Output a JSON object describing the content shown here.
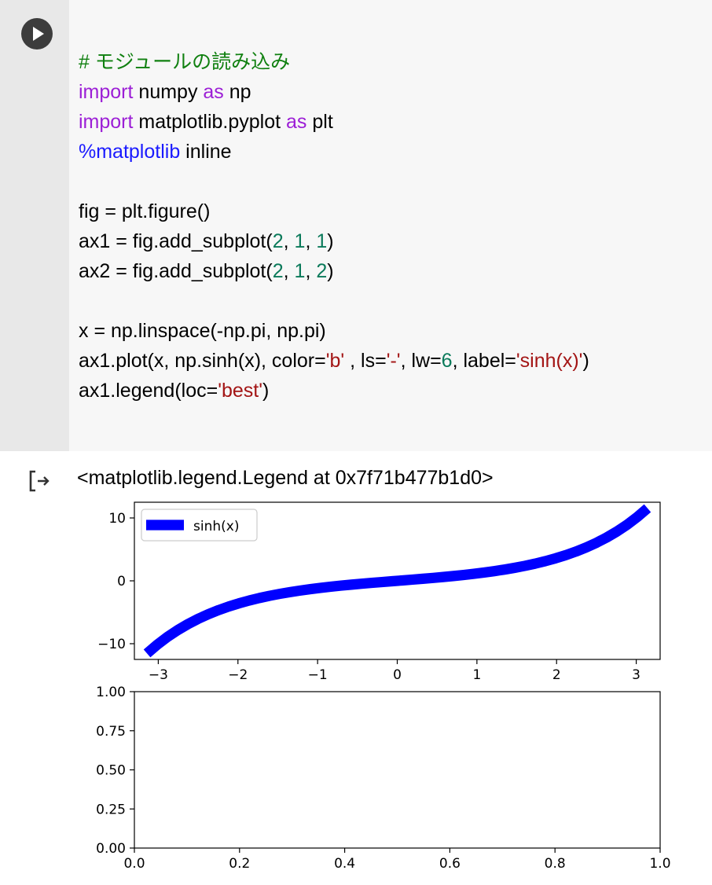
{
  "cell": {
    "run_icon": "play-icon",
    "code_lines": [
      [
        {
          "t": "# モジュールの読み込み",
          "c": "cm"
        }
      ],
      [
        {
          "t": "import",
          "c": "kw"
        },
        {
          "t": " numpy "
        },
        {
          "t": "as",
          "c": "kw"
        },
        {
          "t": " np"
        }
      ],
      [
        {
          "t": "import",
          "c": "kw"
        },
        {
          "t": " matplotlib.pyplot "
        },
        {
          "t": "as",
          "c": "kw"
        },
        {
          "t": " plt"
        }
      ],
      [
        {
          "t": "%matplotlib",
          "c": "mg"
        },
        {
          "t": " inline"
        }
      ],
      [],
      [
        {
          "t": "fig = plt.figure()"
        }
      ],
      [
        {
          "t": "ax1 = fig.add_subplot("
        },
        {
          "t": "2",
          "c": "nm"
        },
        {
          "t": ", "
        },
        {
          "t": "1",
          "c": "nm"
        },
        {
          "t": ", "
        },
        {
          "t": "1",
          "c": "nm"
        },
        {
          "t": ")"
        }
      ],
      [
        {
          "t": "ax2 = fig.add_subplot("
        },
        {
          "t": "2",
          "c": "nm"
        },
        {
          "t": ", "
        },
        {
          "t": "1",
          "c": "nm"
        },
        {
          "t": ", "
        },
        {
          "t": "2",
          "c": "nm"
        },
        {
          "t": ")"
        }
      ],
      [],
      [
        {
          "t": "x = np.linspace(-np.pi, np.pi)"
        }
      ],
      [
        {
          "t": "ax1.plot(x, np.sinh(x), color="
        },
        {
          "t": "'b'",
          "c": "st"
        },
        {
          "t": " , ls="
        },
        {
          "t": "'-'",
          "c": "st"
        },
        {
          "t": ", lw="
        },
        {
          "t": "6",
          "c": "nm"
        },
        {
          "t": ", label="
        },
        {
          "t": "'sinh(x)'",
          "c": "st"
        },
        {
          "t": ")"
        }
      ],
      [
        {
          "t": "ax1.legend(loc="
        },
        {
          "t": "'best'",
          "c": "st"
        },
        {
          "t": ")"
        }
      ]
    ]
  },
  "output": {
    "icon": "output-arrow-icon",
    "text": "<matplotlib.legend.Legend at 0x7f71b477b1d0>"
  },
  "chart_data": [
    {
      "type": "line",
      "title": "",
      "xlabel": "",
      "ylabel": "",
      "xlim": [
        -3.3,
        3.3
      ],
      "ylim": [
        -12.5,
        12.5
      ],
      "x_ticks": [
        -3,
        -2,
        -1,
        0,
        1,
        2,
        3
      ],
      "x_tick_labels": [
        "−3",
        "−2",
        "−1",
        "0",
        "1",
        "2",
        "3"
      ],
      "y_ticks": [
        10,
        0,
        -10
      ],
      "y_tick_labels": [
        "10",
        "0",
        "−10"
      ],
      "legend": {
        "placement": "upper left",
        "entries": [
          "sinh(x)"
        ]
      },
      "series": [
        {
          "name": "sinh(x)",
          "color": "#0000ff",
          "function": "sinh",
          "x_range": [
            -3.14159,
            3.14159
          ],
          "samples": 50,
          "linewidth": 6
        }
      ]
    },
    {
      "type": "line",
      "title": "",
      "xlabel": "",
      "ylabel": "",
      "xlim": [
        0.0,
        1.0
      ],
      "ylim": [
        0.0,
        1.0
      ],
      "x_ticks": [
        0.0,
        0.2,
        0.4,
        0.6,
        0.8,
        1.0
      ],
      "x_tick_labels": [
        "0.0",
        "0.2",
        "0.4",
        "0.6",
        "0.8",
        "1.0"
      ],
      "y_ticks": [
        1.0,
        0.75,
        0.5,
        0.25,
        0.0
      ],
      "y_tick_labels": [
        "1.00",
        "0.75",
        "0.50",
        "0.25",
        "0.00"
      ],
      "series": []
    }
  ]
}
